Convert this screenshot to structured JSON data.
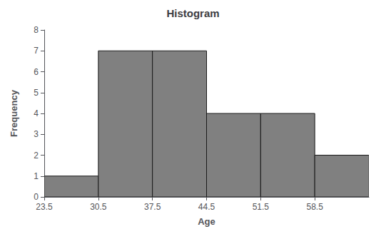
{
  "chart_data": {
    "type": "histogram",
    "title": "Histogram",
    "xlabel": "Age",
    "ylabel": "Frequency",
    "bins": [
      23.5,
      30.5,
      37.5,
      44.5,
      51.5,
      58.5,
      65.5
    ],
    "values": [
      1,
      7,
      7,
      4,
      4,
      2
    ],
    "color": "#808080",
    "xlim": [
      23.5,
      65.5
    ],
    "xticks": [
      23.5,
      30.5,
      37.5,
      44.5,
      51.5,
      58.5
    ],
    "ylim": [
      0,
      8
    ],
    "yticks": [
      0,
      1,
      2,
      3,
      4,
      5,
      6,
      7,
      8
    ],
    "grid": false
  }
}
